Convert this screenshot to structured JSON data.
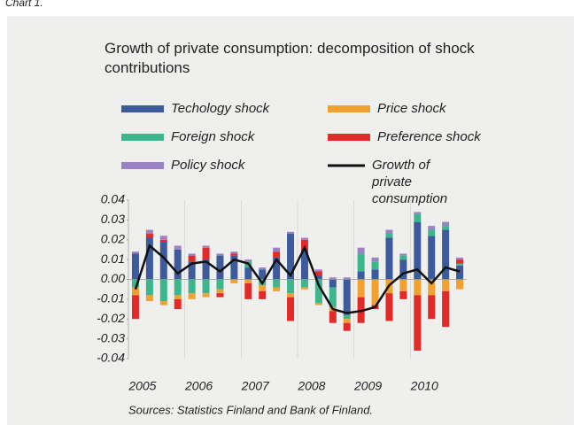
{
  "chart_label": "Chart 1.",
  "chart_data": {
    "type": "bar",
    "stacked": true,
    "title": "Growth of private consumption: decomposition of shock contributions",
    "source": "Sources: Statistics Finland and Bank of Finland.",
    "categories": [
      "2005",
      null,
      null,
      null,
      "2006",
      null,
      null,
      null,
      "2007",
      null,
      null,
      null,
      "2008",
      null,
      null,
      null,
      "2009",
      null,
      null,
      null,
      "2010",
      null,
      null,
      null
    ],
    "series": [
      {
        "name": "Techology shock",
        "color": "#3b5b9d",
        "values": [
          0.013,
          0.021,
          0.019,
          0.015,
          0.009,
          0.01,
          0.012,
          0.012,
          0.006,
          0.005,
          0.011,
          0.023,
          0.015,
          0.002,
          -0.004,
          -0.018,
          0.004,
          0.005,
          0.021,
          0.01,
          0.029,
          0.022,
          0.025,
          0.007
        ]
      },
      {
        "name": "Foreign shock",
        "color": "#3db68e",
        "values": [
          -0.004,
          -0.008,
          -0.011,
          -0.008,
          -0.007,
          -0.007,
          -0.005,
          0.0,
          0.003,
          -0.003,
          -0.004,
          -0.007,
          -0.004,
          -0.012,
          -0.01,
          -0.002,
          0.009,
          0.004,
          0.002,
          0.002,
          0.004,
          0.003,
          0.002,
          0.001
        ]
      },
      {
        "name": "Price shock",
        "color": "#f0a132",
        "values": [
          -0.004,
          -0.003,
          -0.002,
          -0.002,
          -0.003,
          -0.002,
          -0.002,
          -0.002,
          -0.002,
          -0.003,
          -0.002,
          -0.002,
          -0.001,
          -0.001,
          -0.002,
          -0.002,
          -0.009,
          -0.013,
          -0.007,
          -0.006,
          -0.008,
          -0.008,
          -0.006,
          -0.005
        ]
      },
      {
        "name": "Preference shock",
        "color": "#e22a28",
        "values": [
          -0.012,
          0.002,
          0.001,
          -0.005,
          0.003,
          0.006,
          -0.002,
          0.001,
          -0.008,
          -0.004,
          0.003,
          -0.012,
          0.005,
          0.002,
          -0.006,
          -0.004,
          -0.013,
          -0.002,
          -0.014,
          -0.004,
          -0.028,
          -0.012,
          -0.018,
          0.002
        ]
      },
      {
        "name": "Policy shock",
        "color": "#9b82c2",
        "values": [
          0.001,
          0.002,
          0.002,
          0.002,
          0.001,
          0.001,
          0.001,
          0.001,
          0.001,
          0.001,
          0.002,
          0.001,
          0.001,
          0.001,
          0.001,
          0.001,
          0.003,
          0.002,
          0.002,
          0.001,
          0.001,
          0.002,
          0.002,
          0.001
        ]
      },
      {
        "name": "Growth of private consumption",
        "color": "#111111",
        "type": "line",
        "values": [
          -0.005,
          0.017,
          0.011,
          0.003,
          0.008,
          0.009,
          0.004,
          0.01,
          0.008,
          -0.002,
          0.01,
          0.002,
          0.016,
          -0.003,
          -0.015,
          -0.017,
          -0.016,
          -0.014,
          -0.003,
          0.003,
          0.005,
          -0.002,
          0.006,
          0.004
        ]
      }
    ],
    "ylim": [
      -0.04,
      0.04
    ],
    "yticks": [
      0.04,
      0.03,
      0.02,
      0.01,
      {
        "value": 0,
        "label": "0.00"
      },
      -0.01,
      -0.02,
      -0.03,
      -0.04
    ]
  }
}
